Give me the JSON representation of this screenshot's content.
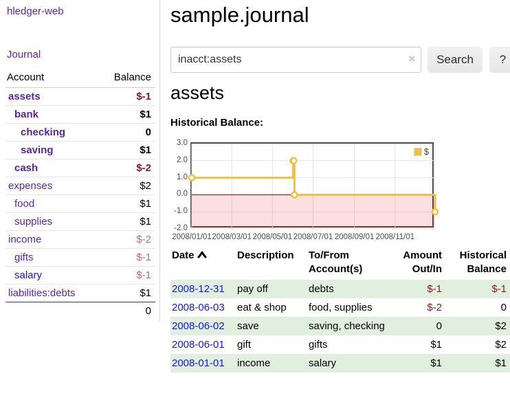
{
  "colors": {
    "accent_purple": "#5a25a5",
    "link_blue": "#1515e0",
    "negative_strong": "#96141e",
    "negative_soft": "#c3696e",
    "row_green": "#e0efde",
    "chart_gold": "#edc240",
    "chart_zero_line": "#800000",
    "chart_gridline": "#e4e4e4"
  },
  "sidebar": {
    "brand": "hledger-web",
    "journal_link": "Journal",
    "table": {
      "account_header": "Account",
      "balance_header": "Balance",
      "rows": [
        {
          "name": "assets",
          "balance": "$-1",
          "indent": 0,
          "bold": true
        },
        {
          "name": "bank",
          "balance": "$1",
          "indent": 1,
          "bold": true
        },
        {
          "name": "checking",
          "balance": "0",
          "indent": 2,
          "bold": true
        },
        {
          "name": "saving",
          "balance": "$1",
          "indent": 2,
          "bold": true
        },
        {
          "name": "cash",
          "balance": "$-2",
          "indent": 1,
          "bold": true
        },
        {
          "name": "expenses",
          "balance": "$2",
          "indent": 0,
          "bold": false
        },
        {
          "name": "food",
          "balance": "$1",
          "indent": 1,
          "bold": false
        },
        {
          "name": "supplies",
          "balance": "$1",
          "indent": 1,
          "bold": false
        },
        {
          "name": "income",
          "balance": "$-2",
          "indent": 0,
          "bold": false
        },
        {
          "name": "gifts",
          "balance": "$-1",
          "indent": 1,
          "bold": false
        },
        {
          "name": "salary",
          "balance": "$-1",
          "indent": 1,
          "bold": false,
          "link_color": "#1515e0"
        },
        {
          "name": "liabilities:debts",
          "balance": "$1",
          "indent": 0,
          "bold": false
        }
      ],
      "total": "0"
    }
  },
  "main": {
    "title": "sample.journal",
    "search": {
      "value": "inacct:assets",
      "clear_icon": "×",
      "search_button": "Search",
      "help_button": "?"
    },
    "account_heading": "assets",
    "chart_title": "Historical Balance:"
  },
  "chart_data": {
    "type": "line",
    "title": "Historical Balance:",
    "step": true,
    "x_range": [
      "2008-01-01",
      "2008-12-31"
    ],
    "ylim": [
      -2,
      3
    ],
    "y_ticks": [
      3.0,
      2.0,
      1.0,
      0.0,
      -1.0,
      -2.0
    ],
    "x_ticks": [
      "2008/01/01",
      "2008/03/01",
      "2008/05/01",
      "2008/07/01",
      "2008/09/01",
      "2008/11/01"
    ],
    "grid": true,
    "legend_position": "top-right",
    "legend": [
      {
        "label": "$",
        "color": "#edc240"
      }
    ],
    "negative_region": {
      "from": 0,
      "to": -2,
      "fill": "rgba(230,0,0,0.12)"
    },
    "zero_line_color": "#800000",
    "series": [
      {
        "name": "$",
        "color": "#edc240",
        "points": [
          {
            "date": "2008-01-01",
            "value": 1
          },
          {
            "date": "2008-06-01",
            "value": 2
          },
          {
            "date": "2008-06-02",
            "value": 2
          },
          {
            "date": "2008-06-03",
            "value": 0
          },
          {
            "date": "2008-12-31",
            "value": -1
          }
        ]
      }
    ]
  },
  "register": {
    "headers": {
      "date": "Date",
      "description": "Description",
      "tofrom_line1": "To/From",
      "tofrom_line2": "Account(s)",
      "amount_line1": "Amount",
      "amount_line2": "Out/In",
      "balance_line1": "Historical",
      "balance_line2": "Balance"
    },
    "rows": [
      {
        "date": "2008-12-31",
        "description": "pay off",
        "accounts": "debts",
        "amount": "$-1",
        "balance": "$-1"
      },
      {
        "date": "2008-06-03",
        "description": "eat & shop",
        "accounts": "food, supplies",
        "amount": "$-2",
        "balance": "0"
      },
      {
        "date": "2008-06-02",
        "description": "save",
        "accounts": "saving, checking",
        "amount": "0",
        "balance": "$2"
      },
      {
        "date": "2008-06-01",
        "description": "gift",
        "accounts": "gifts",
        "amount": "$1",
        "balance": "$2"
      },
      {
        "date": "2008-01-01",
        "description": "income",
        "accounts": "salary",
        "amount": "$1",
        "balance": "$1"
      }
    ]
  }
}
